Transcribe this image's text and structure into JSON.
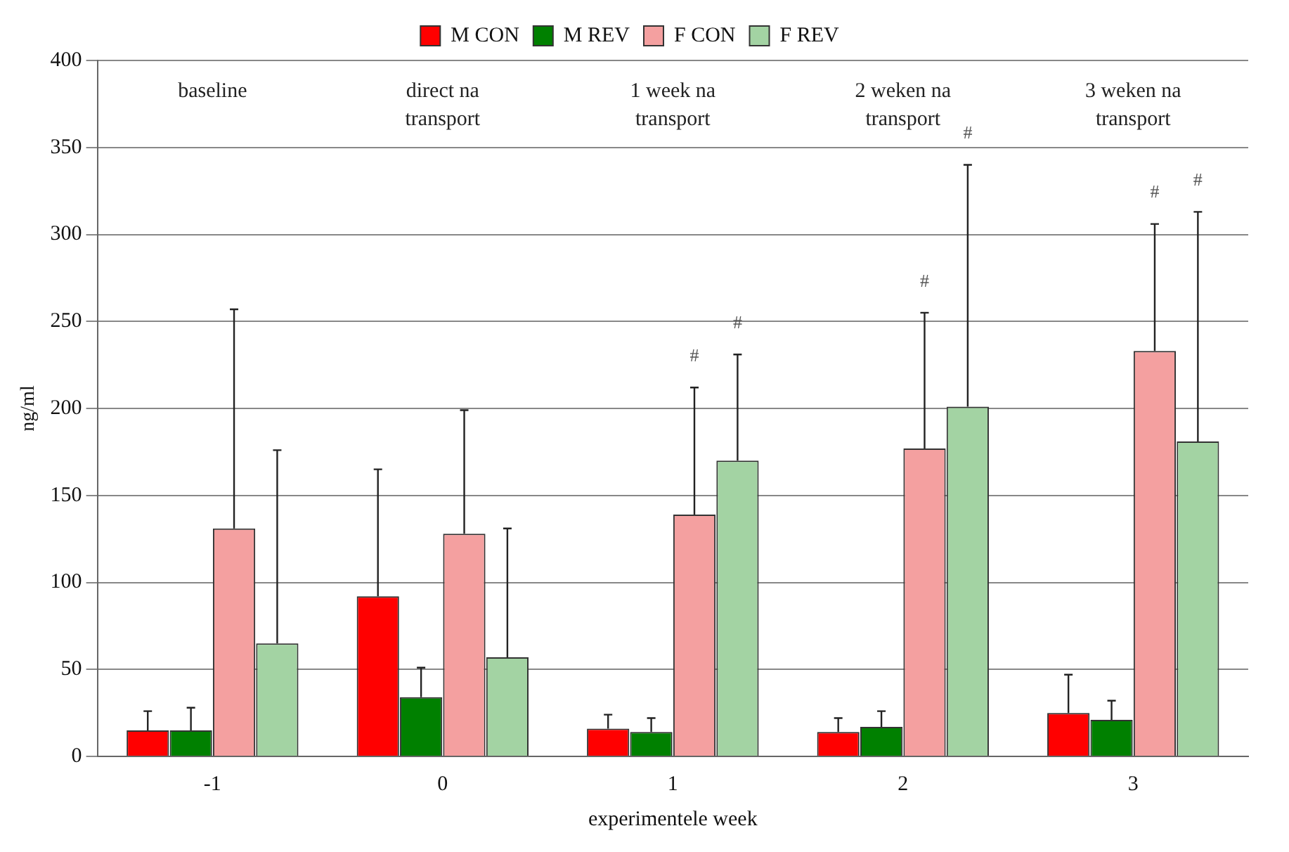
{
  "chart_data": {
    "type": "bar",
    "xlabel": "experimentele week",
    "ylabel": "ng/ml",
    "categories": [
      "-1",
      "0",
      "1",
      "2",
      "3"
    ],
    "series": [
      {
        "name": "M CON",
        "color": "#ff0000",
        "values": [
          15,
          92,
          16,
          14,
          25
        ],
        "errors": [
          [
            15,
            26
          ],
          [
            92,
            165
          ],
          [
            16,
            24
          ],
          [
            14,
            22
          ],
          [
            25,
            47
          ]
        ]
      },
      {
        "name": "M REV",
        "color": "#008000",
        "values": [
          15,
          34,
          14,
          17,
          21
        ],
        "errors": [
          [
            15,
            28
          ],
          [
            34,
            51
          ],
          [
            14,
            22
          ],
          [
            17,
            26
          ],
          [
            21,
            32
          ]
        ]
      },
      {
        "name": "F CON",
        "color": "#f4a0a0",
        "values": [
          131,
          128,
          139,
          177,
          233
        ],
        "errors": [
          [
            131,
            257
          ],
          [
            128,
            199
          ],
          [
            139,
            212
          ],
          [
            177,
            255
          ],
          [
            233,
            306
          ]
        ]
      },
      {
        "name": "F REV",
        "color": "#a3d3a3",
        "values": [
          65,
          57,
          170,
          201,
          181
        ],
        "errors": [
          [
            65,
            176
          ],
          [
            57,
            131
          ],
          [
            170,
            231
          ],
          [
            201,
            340
          ],
          [
            181,
            313
          ]
        ]
      }
    ],
    "ylim": [
      0,
      400
    ],
    "yticks": [
      0,
      50,
      100,
      150,
      200,
      250,
      300,
      350,
      400
    ],
    "grid": "y",
    "legend": "top",
    "annotations": [
      "baseline",
      "direct na transport",
      "1 week na transport",
      "2 weken na transport",
      "3 weken na transport",
      "#",
      "#",
      "#",
      "#",
      "#",
      "#"
    ]
  }
}
